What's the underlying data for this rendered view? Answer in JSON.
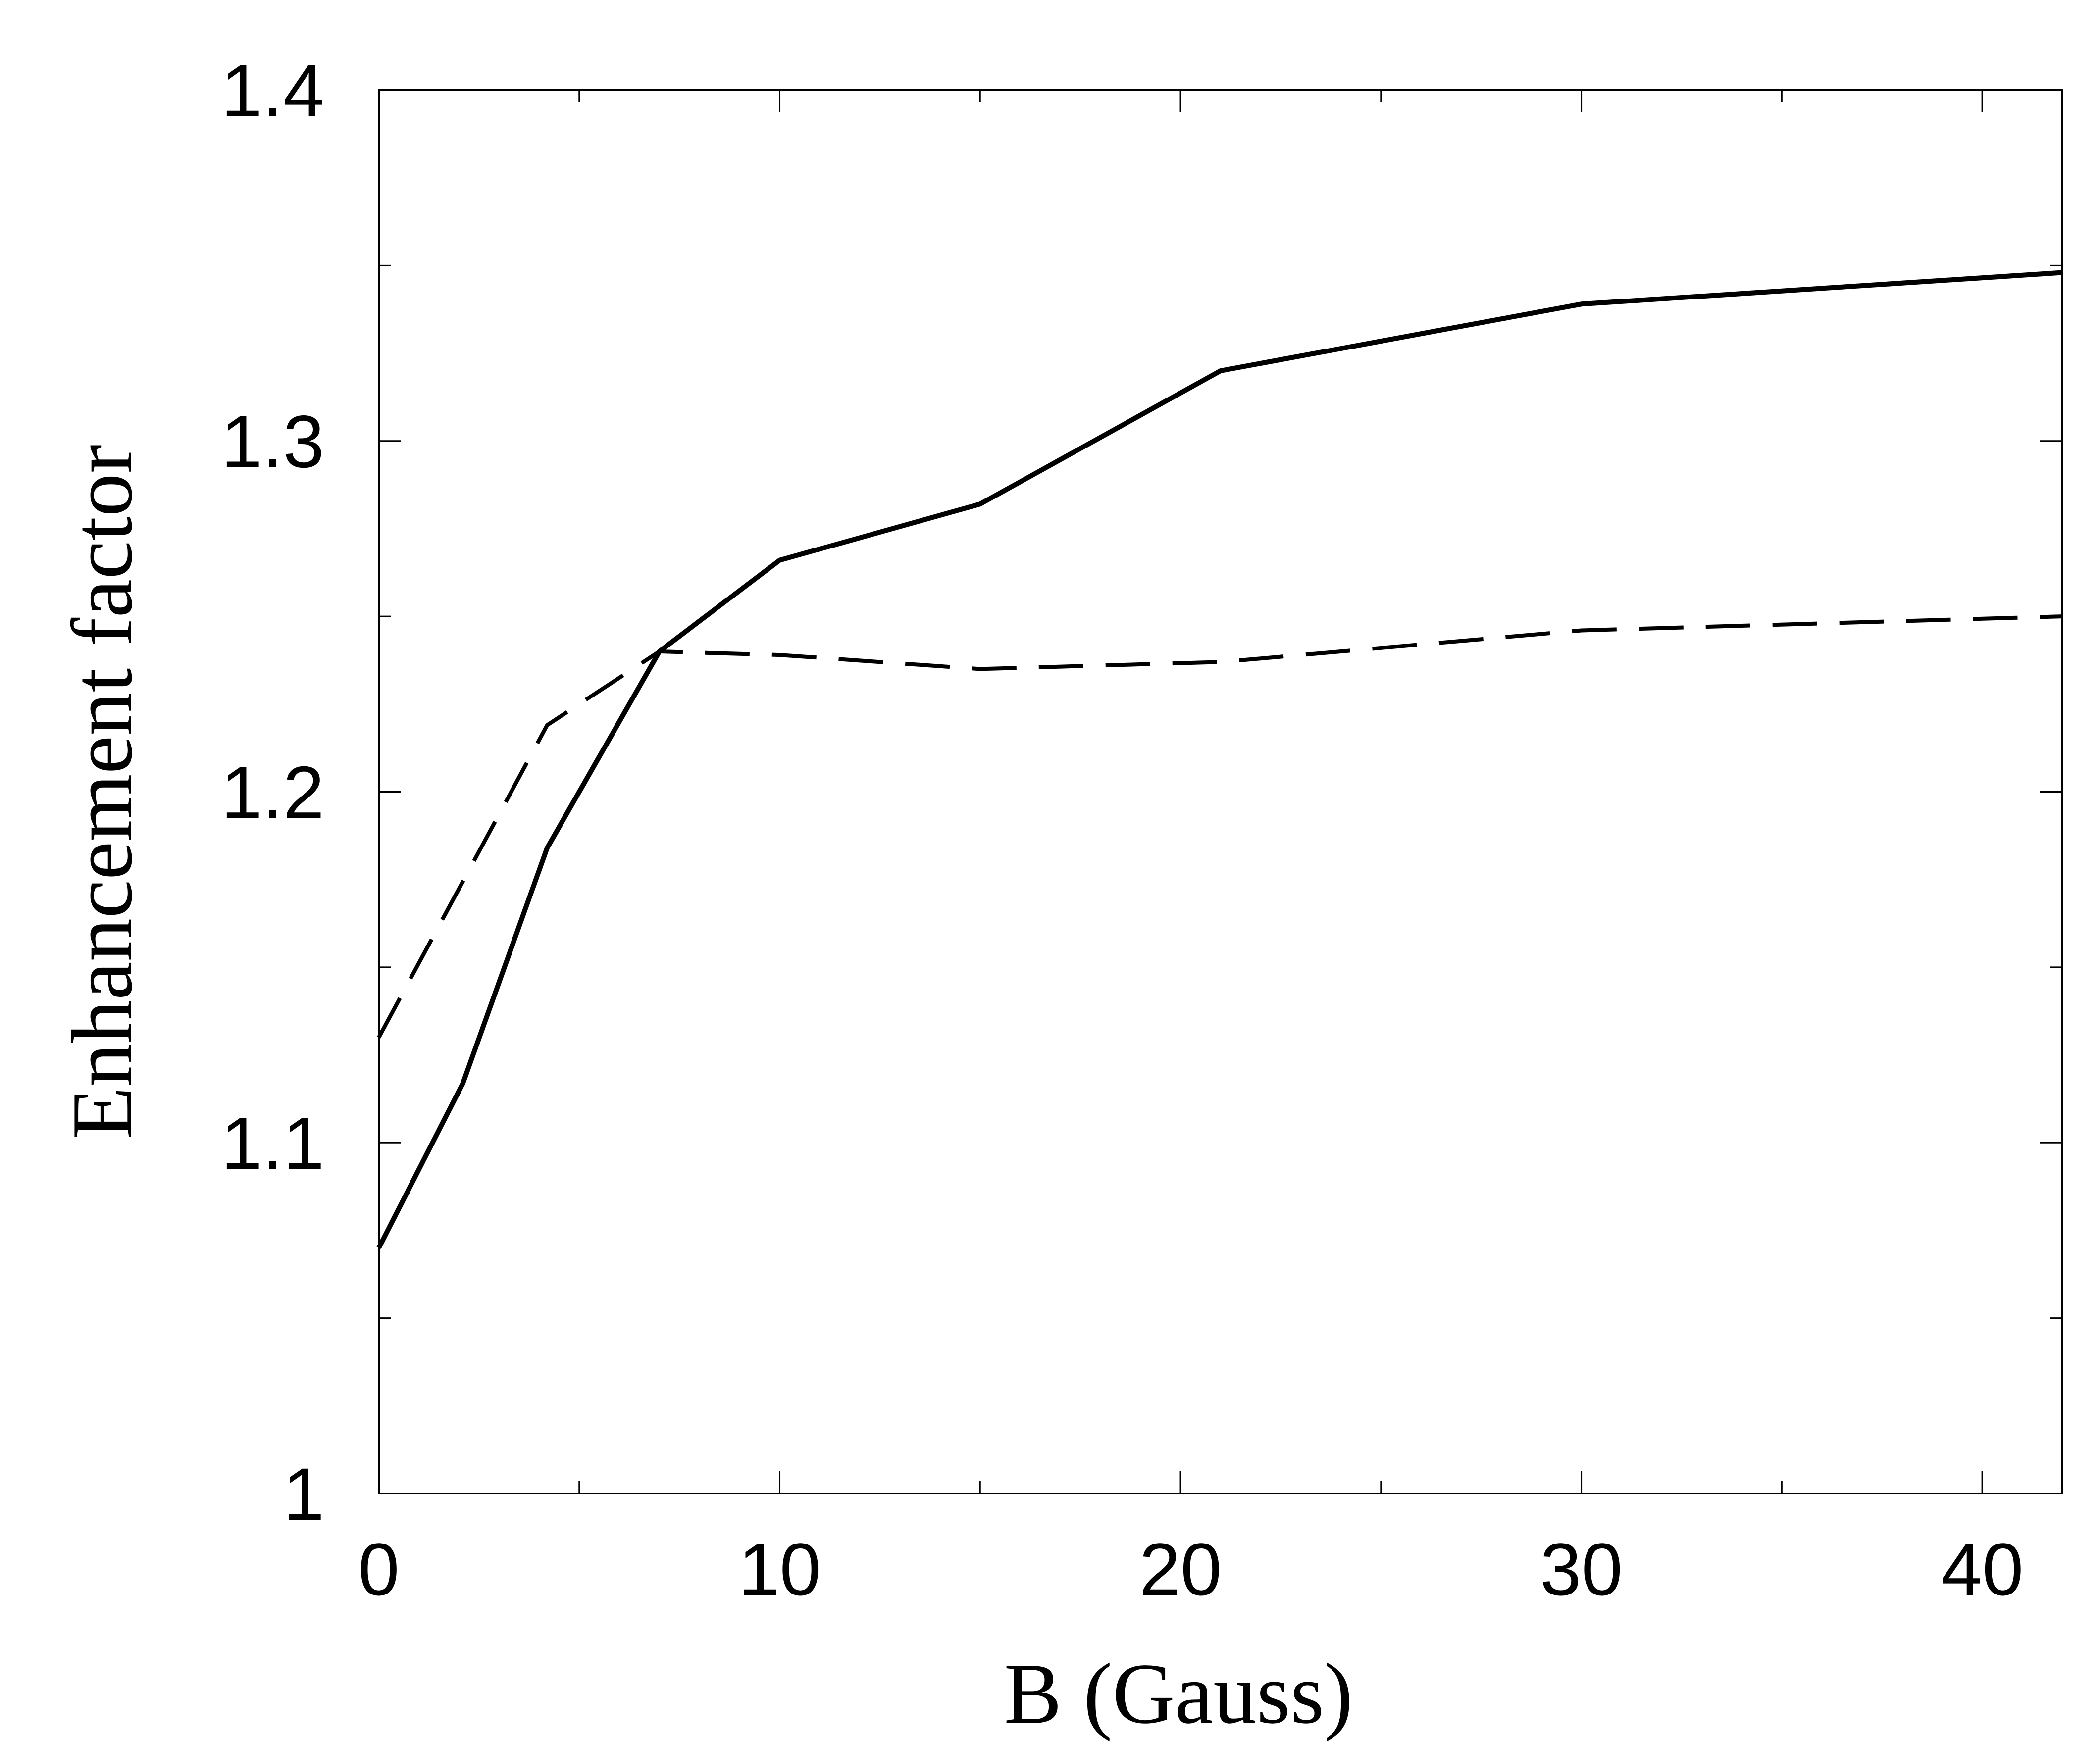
{
  "chart_data": {
    "type": "line",
    "xlabel": "B (Gauss)",
    "ylabel": "Enhancement factor",
    "xlim": [
      0,
      42
    ],
    "ylim": [
      1.0,
      1.4
    ],
    "x_major_ticks": [
      0,
      10,
      20,
      30,
      40
    ],
    "x_tick_labels": [
      "0",
      "10",
      "20",
      "30",
      "40"
    ],
    "x_minor_ticks": [
      5,
      15,
      25,
      35
    ],
    "y_major_ticks": [
      1.0,
      1.1,
      1.2,
      1.3,
      1.4
    ],
    "y_tick_labels": [
      "1",
      "1.1",
      "1.2",
      "1.3",
      "1.4"
    ],
    "y_minor_ticks": [
      1.05,
      1.15,
      1.25,
      1.35
    ],
    "grid": false,
    "legend": "none",
    "series": [
      {
        "style": "solid",
        "color": "#000000",
        "x": [
          0,
          2.1,
          4.2,
          7,
          10,
          15,
          21,
          30,
          42
        ],
        "y": [
          1.07,
          1.117,
          1.184,
          1.24,
          1.266,
          1.282,
          1.32,
          1.339,
          1.348
        ]
      },
      {
        "style": "dashed",
        "color": "#000000",
        "x": [
          0,
          4.2,
          7,
          10,
          15,
          21,
          30,
          42
        ],
        "y": [
          1.13,
          1.219,
          1.24,
          1.239,
          1.235,
          1.237,
          1.246,
          1.25
        ]
      }
    ]
  }
}
